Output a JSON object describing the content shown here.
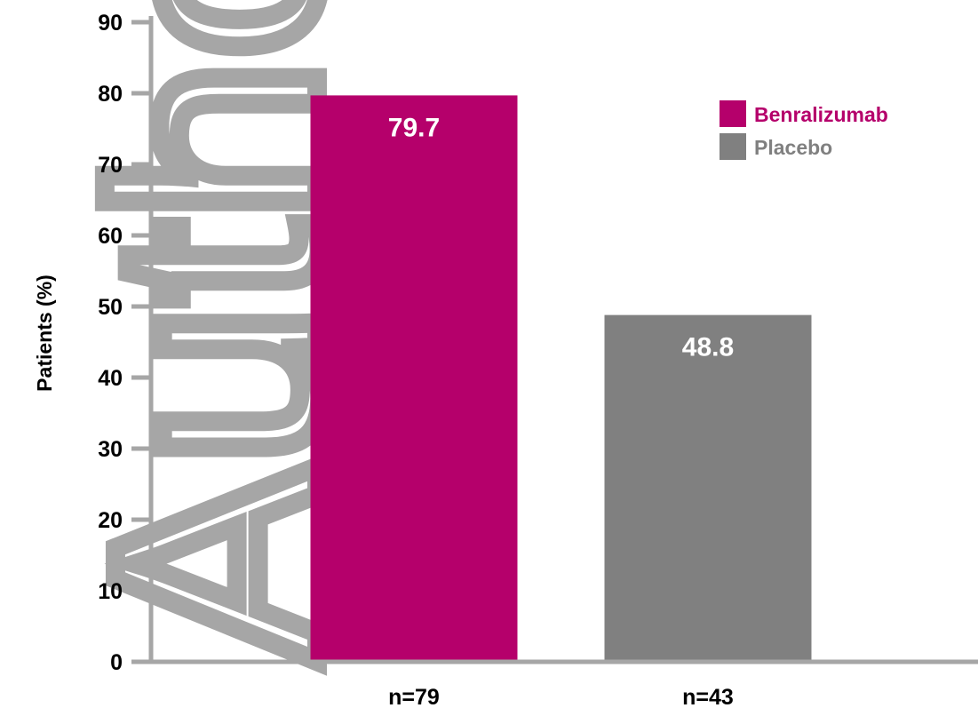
{
  "chart_data": {
    "type": "bar",
    "categories": [
      "n=79",
      "n=43"
    ],
    "series": [
      {
        "name": "Benralizumab",
        "values": [
          79.7,
          null
        ],
        "color": "#b5006b"
      },
      {
        "name": "Placebo",
        "values": [
          null,
          48.8
        ],
        "color": "#808080"
      }
    ],
    "value_labels": [
      "79.7",
      "48.8"
    ],
    "ylabel": "Patients (%)",
    "ylim": [
      0,
      90
    ],
    "yticks": [
      0,
      10,
      20,
      30,
      40,
      50,
      60,
      70,
      80,
      90
    ],
    "legend": "top-right",
    "grid": false
  },
  "watermark": {
    "text": "Author M",
    "color": "#a6a6a6"
  },
  "axis_color": "#a6a6a6"
}
